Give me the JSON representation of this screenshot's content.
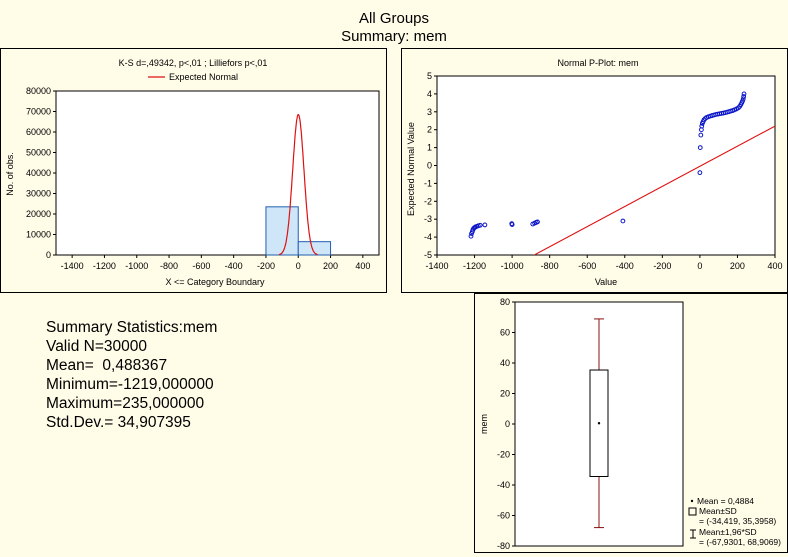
{
  "header": {
    "title": "All Groups",
    "subtitle": "Summary: mem"
  },
  "chart_data": [
    {
      "type": "bar",
      "title": "K-S d=,49342, p<,01 ; Lilliefors p<,01",
      "legend": [
        "Expected Normal"
      ],
      "xlabel": "X <= Category Boundary",
      "ylabel": "No. of obs.",
      "xlim": [
        -1500,
        500
      ],
      "ylim": [
        0,
        80000
      ],
      "xticks": [
        "-1400",
        "-1200",
        "-1000",
        "-800",
        "-600",
        "-400",
        "-200",
        "0",
        "200",
        "400"
      ],
      "yticks": [
        "0",
        "10000",
        "20000",
        "30000",
        "40000",
        "50000",
        "60000",
        "70000",
        "80000"
      ],
      "bins": [
        {
          "from": -1400,
          "to": -1200,
          "count": 0
        },
        {
          "from": -1200,
          "to": -1000,
          "count": 0
        },
        {
          "from": -1000,
          "to": -800,
          "count": 0
        },
        {
          "from": -800,
          "to": -600,
          "count": 0
        },
        {
          "from": -600,
          "to": -400,
          "count": 0
        },
        {
          "from": -400,
          "to": -200,
          "count": 0
        },
        {
          "from": -200,
          "to": 0,
          "count": 23500
        },
        {
          "from": 0,
          "to": 200,
          "count": 6500
        }
      ],
      "expected_normal": {
        "mean": 0.488367,
        "sd": 34.907395,
        "peak": 68500
      },
      "colors": {
        "bar_fill": "#cfe6f8",
        "bar_stroke": "#1f5fb0",
        "curve": "#e01010"
      }
    },
    {
      "type": "scatter",
      "title": "Normal P-Plot: mem",
      "xlabel": "Value",
      "ylabel": "Expected Normal Value",
      "xlim": [
        -1400,
        400
      ],
      "ylim": [
        -5,
        5
      ],
      "xticks": [
        "-1400",
        "-1200",
        "-1000",
        "-800",
        "-600",
        "-400",
        "-200",
        "0",
        "200",
        "400"
      ],
      "yticks": [
        "-5",
        "-4",
        "-3",
        "-2",
        "-1",
        "0",
        "1",
        "2",
        "3",
        "4",
        "5"
      ],
      "points": [
        [
          -1219,
          -3.95
        ],
        [
          -1216,
          -3.8
        ],
        [
          -1212,
          -3.7
        ],
        [
          -1209,
          -3.6
        ],
        [
          -1205,
          -3.52
        ],
        [
          -1200,
          -3.47
        ],
        [
          -1195,
          -3.43
        ],
        [
          -1188,
          -3.4
        ],
        [
          -1180,
          -3.37
        ],
        [
          -1170,
          -3.34
        ],
        [
          -1145,
          -3.32
        ],
        [
          -1000,
          -3.3
        ],
        [
          -1002,
          -3.25
        ],
        [
          -890,
          -3.27
        ],
        [
          -880,
          -3.22
        ],
        [
          -872,
          -3.18
        ],
        [
          -865,
          -3.15
        ],
        [
          -410,
          -3.1
        ],
        [
          0,
          -0.4
        ],
        [
          2,
          1.0
        ],
        [
          5,
          1.7
        ],
        [
          8,
          2.0
        ],
        [
          10,
          2.2
        ],
        [
          13,
          2.35
        ],
        [
          17,
          2.45
        ],
        [
          22,
          2.55
        ],
        [
          28,
          2.62
        ],
        [
          35,
          2.68
        ],
        [
          45,
          2.72
        ],
        [
          55,
          2.76
        ],
        [
          65,
          2.79
        ],
        [
          75,
          2.82
        ],
        [
          85,
          2.85
        ],
        [
          95,
          2.87
        ],
        [
          105,
          2.89
        ],
        [
          115,
          2.91
        ],
        [
          125,
          2.93
        ],
        [
          135,
          2.95
        ],
        [
          145,
          2.98
        ],
        [
          155,
          3.01
        ],
        [
          165,
          3.04
        ],
        [
          175,
          3.07
        ],
        [
          185,
          3.11
        ],
        [
          195,
          3.16
        ],
        [
          205,
          3.22
        ],
        [
          212,
          3.3
        ],
        [
          218,
          3.4
        ],
        [
          223,
          3.5
        ],
        [
          227,
          3.6
        ],
        [
          231,
          3.72
        ],
        [
          233,
          3.85
        ],
        [
          235,
          4.0
        ]
      ],
      "reference_line": {
        "from": [
          -900,
          -5.1
        ],
        "to": [
          400,
          2.2
        ]
      },
      "colors": {
        "points": "#0a14c8",
        "line": "#e01010"
      }
    },
    {
      "type": "box",
      "ylabel": "mem",
      "ylim": [
        -80,
        80
      ],
      "yticks": [
        "-80",
        "-60",
        "-40",
        "-20",
        "0",
        "20",
        "40",
        "60",
        "80"
      ],
      "mean": 0.4884,
      "box": [
        -34.419,
        35.3958
      ],
      "whiskers": [
        -67.9301,
        68.9069
      ],
      "legend": [
        "Mean = 0,4884",
        "Mean±SD",
        "= (-34,419, 35,3958)",
        "Mean±1,96*SD",
        "= (-67,9301, 68,9069)"
      ],
      "colors": {
        "box": "#000000",
        "whisker": "#8b1010"
      }
    }
  ],
  "summary": {
    "heading": "Summary Statistics:mem",
    "lines": [
      "Valid N=30000",
      "Mean=  0,488367",
      "Minimum=-1219,000000",
      "Maximum=235,000000",
      "Std.Dev.= 34,907395"
    ]
  }
}
